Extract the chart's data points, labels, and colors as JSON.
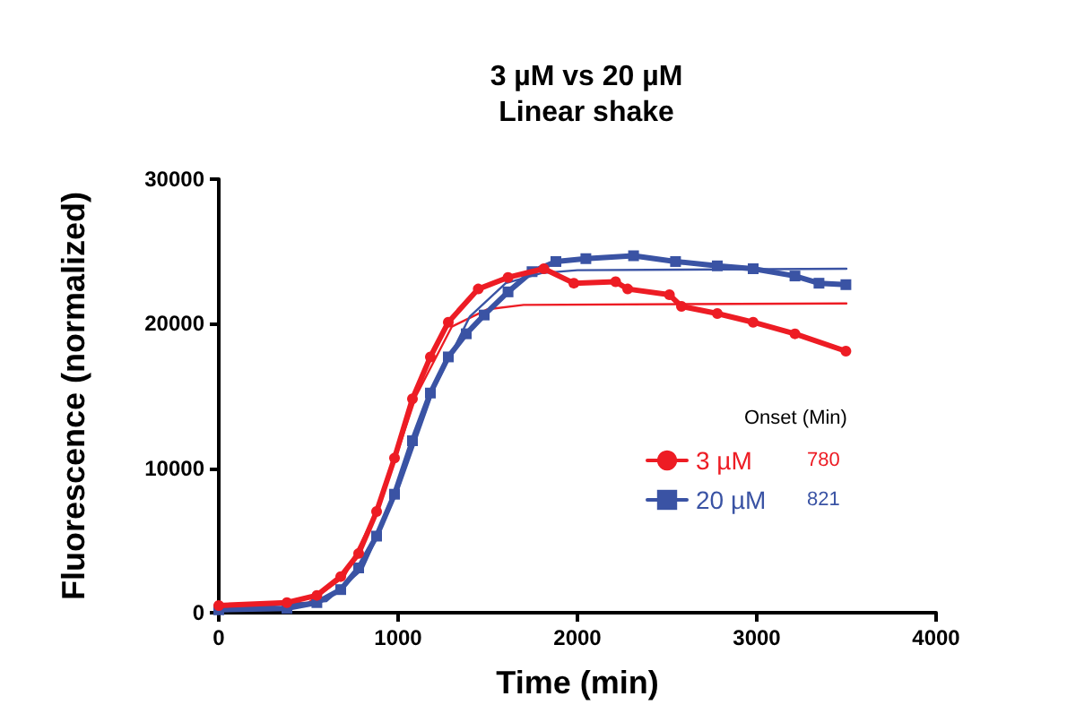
{
  "chart_data": {
    "type": "line",
    "title": "3 µM vs 20 µM",
    "subtitle": "Linear shake",
    "xlabel": "Time (min)",
    "ylabel": "Fluorescence (normalized)",
    "legend_title": "Onset (Min)",
    "annotations": [
      "780",
      "821"
    ],
    "xlim": [
      0,
      4000
    ],
    "xticks": [
      0,
      1000,
      2000,
      3000,
      4000
    ],
    "ylim": [
      0,
      30000
    ],
    "yticks": [
      0,
      10000,
      20000,
      30000
    ],
    "grid": false,
    "legend": "right",
    "series": [
      {
        "name": "3 µM",
        "color": "#ed1c24",
        "marker": "circle",
        "x": [
          0,
          380,
          547,
          680,
          780,
          880,
          980,
          1080,
          1180,
          1280,
          1447,
          1613,
          1813,
          1980,
          2213,
          2280,
          2513,
          2580,
          2780,
          2980,
          3213,
          3497
        ],
        "values": [
          500,
          700,
          1200,
          2500,
          4100,
          7000,
          10700,
          14800,
          17700,
          20100,
          22400,
          23200,
          23800,
          22800,
          22900,
          22400,
          22000,
          21200,
          20700,
          20100,
          19300,
          18100
        ]
      },
      {
        "name": "20 µM",
        "color": "#3a53a4",
        "marker": "square",
        "x": [
          0,
          380,
          547,
          680,
          780,
          880,
          980,
          1080,
          1180,
          1280,
          1380,
          1480,
          1613,
          1747,
          1880,
          2047,
          2313,
          2547,
          2780,
          2980,
          3213,
          3347,
          3497
        ],
        "values": [
          200,
          300,
          700,
          1600,
          3100,
          5300,
          8200,
          11900,
          15200,
          17700,
          19300,
          20600,
          22200,
          23600,
          24300,
          24500,
          24700,
          24300,
          24000,
          23800,
          23300,
          22800,
          22700
        ]
      },
      {
        "type": "line",
        "color": "#ed1c24",
        "marker": "none",
        "x": [
          0,
          500,
          700,
          900,
          1100,
          1300,
          1500,
          1700,
          3500
        ],
        "values": [
          400,
          700,
          2500,
          7500,
          15000,
          19800,
          21000,
          21300,
          21400
        ]
      },
      {
        "type": "line",
        "color": "#3a53a4",
        "marker": "none",
        "x": [
          0,
          600,
          800,
          1000,
          1200,
          1400,
          1600,
          1800,
          2000,
          3500
        ],
        "values": [
          200,
          800,
          3000,
          8500,
          15500,
          20500,
          22800,
          23500,
          23700,
          23800
        ]
      }
    ]
  }
}
